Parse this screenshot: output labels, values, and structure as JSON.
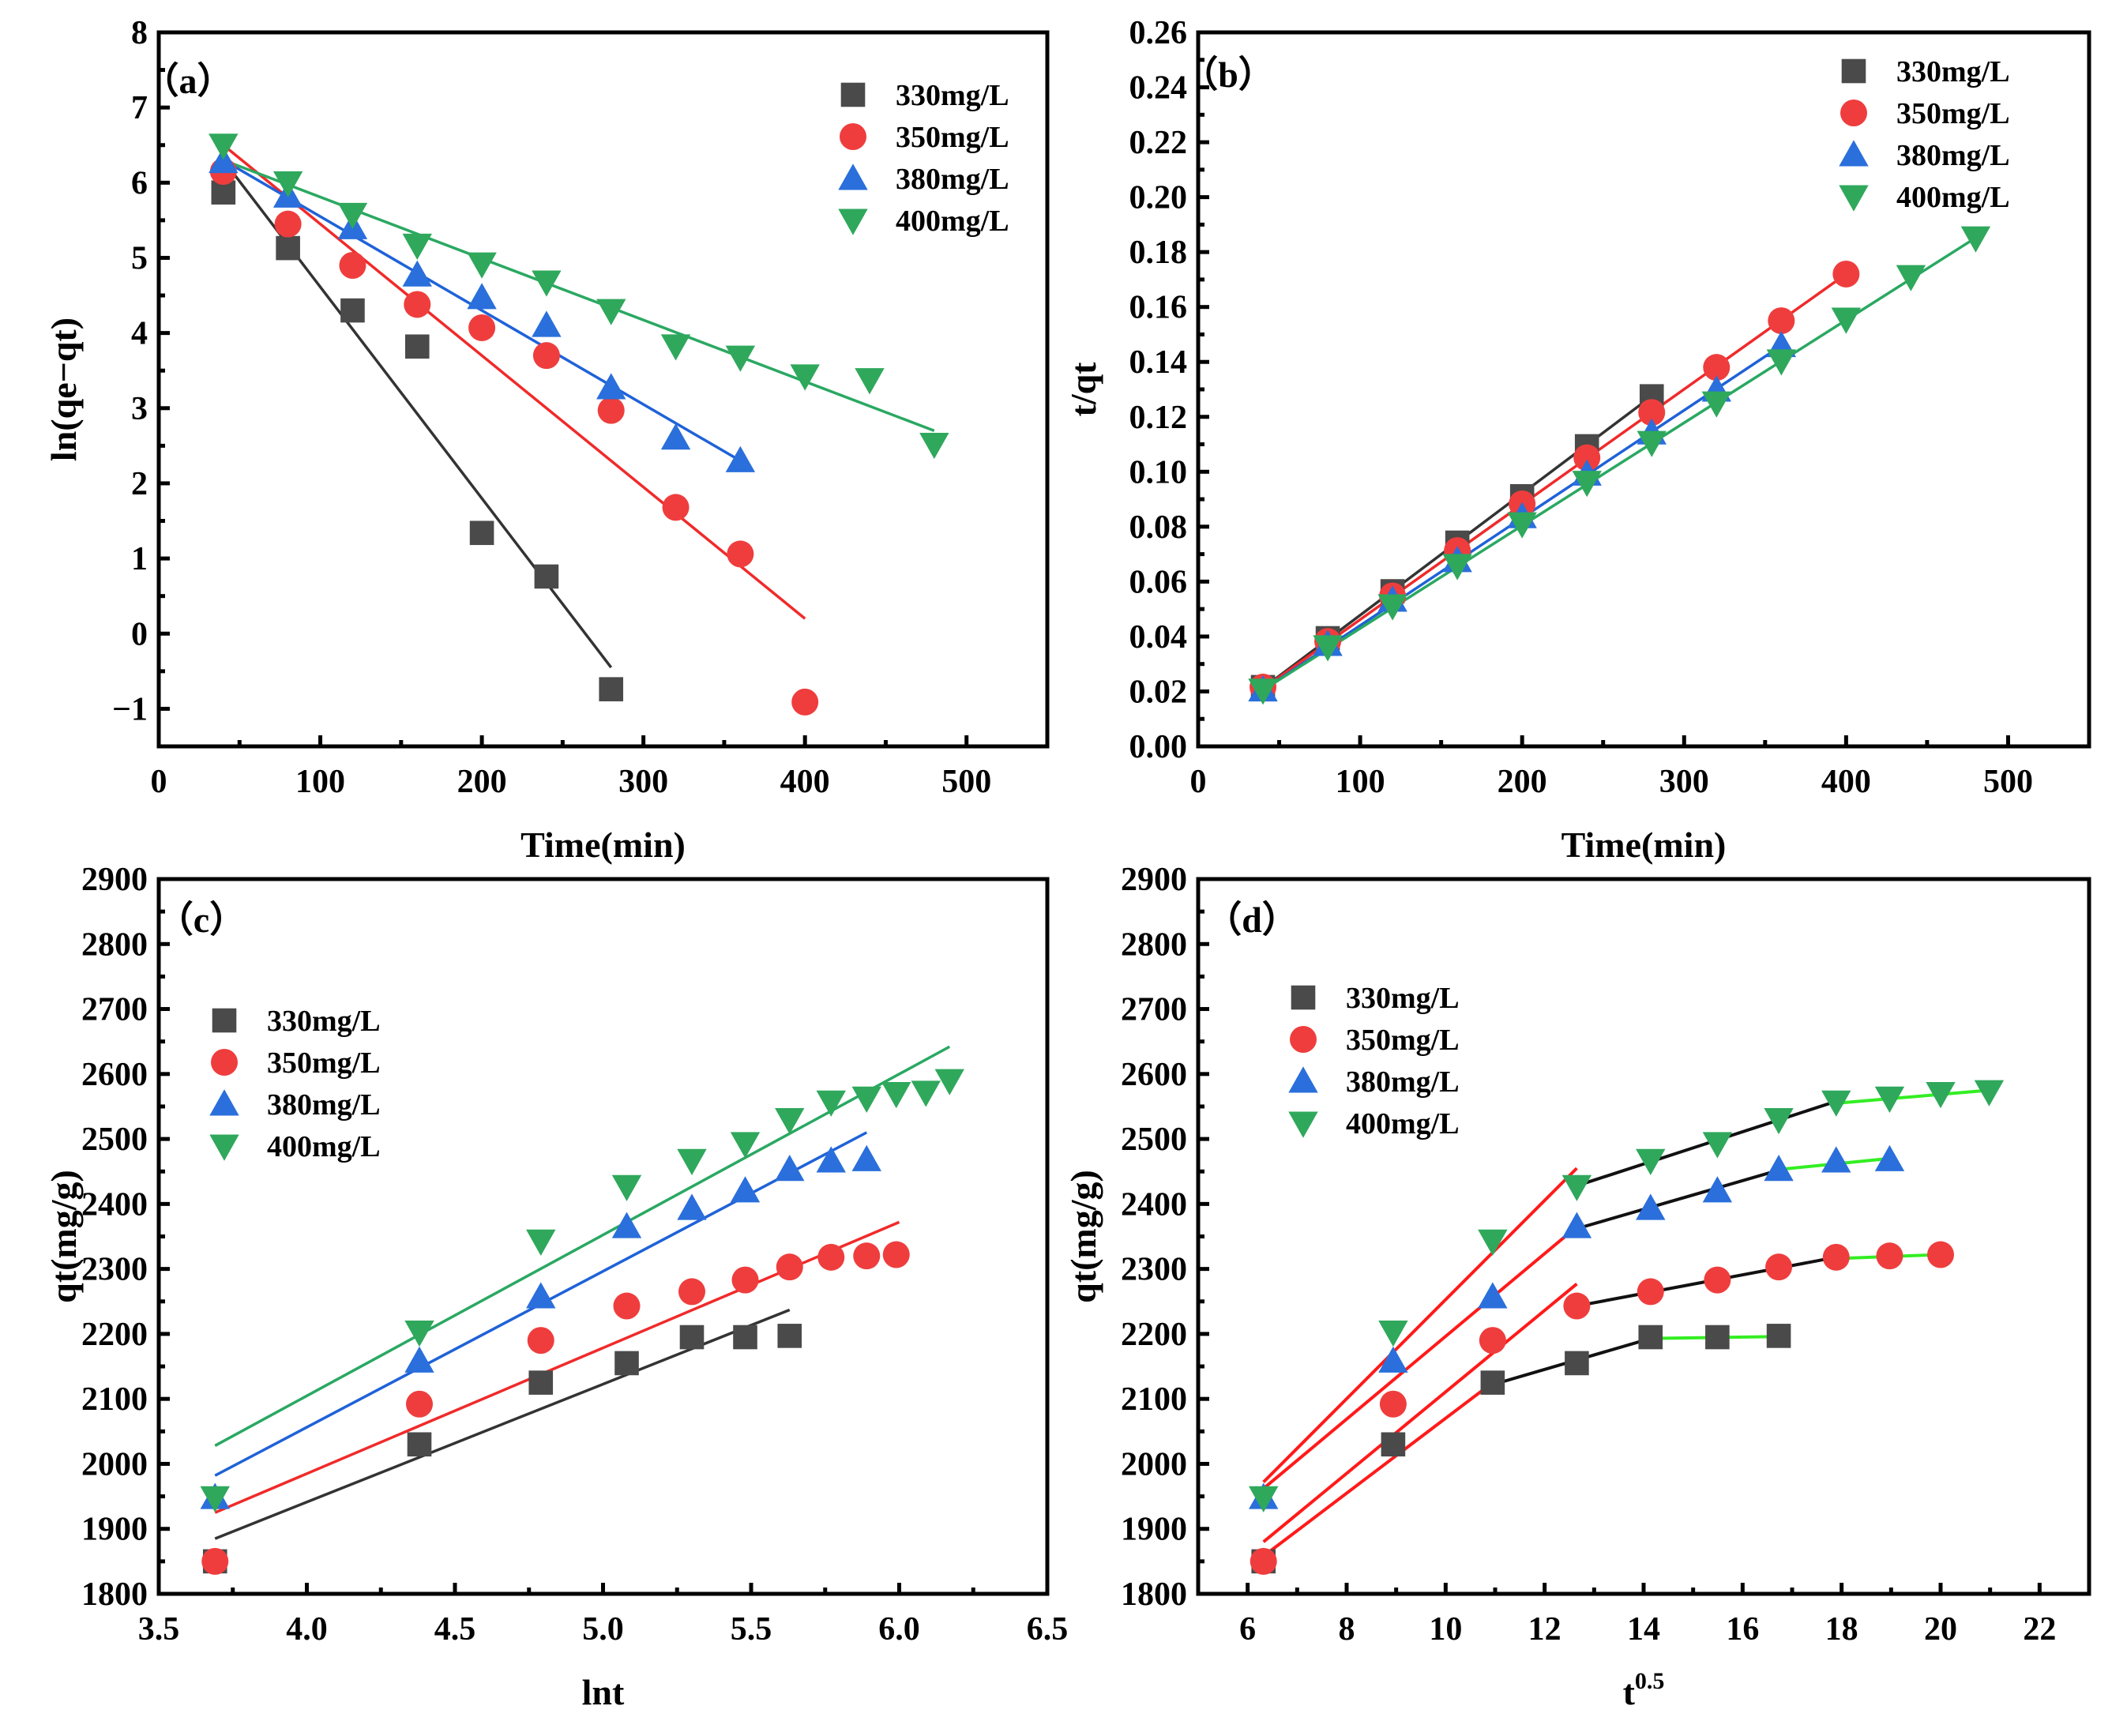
{
  "colors": {
    "330": "#4a4a4a",
    "350": "#ef3d3d",
    "380": "#2a6fdb",
    "400": "#2fa85c",
    "line_330": "#333333",
    "line_350": "#f02a2a",
    "line_380": "#1f62d8",
    "line_400": "#2aa862",
    "seg_red": "#ff1a1a",
    "seg_black": "#111111",
    "seg_green": "#33ee22"
  },
  "legend": [
    "330mg/L",
    "350mg/L",
    "380mg/L",
    "400mg/L"
  ],
  "chart_data": [
    {
      "id": "a",
      "type": "scatter",
      "panel_label": "（a）",
      "xlabel": "Time(min)",
      "ylabel": "ln(qe−qt)",
      "xlim": [
        0,
        550
      ],
      "ylim": [
        -1.5,
        8
      ],
      "xticks": [
        0,
        100,
        200,
        300,
        400,
        500
      ],
      "xtick_labels": [
        "0",
        "100",
        "200",
        "300",
        "400",
        "500"
      ],
      "yticks": [
        -1,
        0,
        1,
        2,
        3,
        4,
        5,
        6,
        7,
        8
      ],
      "ytick_labels": [
        "−1",
        "0",
        "1",
        "2",
        "3",
        "4",
        "5",
        "6",
        "7",
        "8"
      ],
      "legend_position": "top-right",
      "series": [
        {
          "name": "330mg/L",
          "key": "330",
          "marker": "square",
          "x": [
            40,
            80,
            120,
            160,
            200,
            240,
            280
          ],
          "y": [
            5.87,
            5.13,
            4.3,
            3.82,
            1.34,
            0.76,
            -0.74
          ],
          "fit": [
            [
              40,
              6.3
            ],
            [
              280,
              -0.45
            ]
          ]
        },
        {
          "name": "350mg/L",
          "key": "350",
          "marker": "circle",
          "x": [
            40,
            80,
            120,
            160,
            200,
            240,
            280,
            320,
            360,
            400
          ],
          "y": [
            6.15,
            5.45,
            4.9,
            4.38,
            4.07,
            3.7,
            2.97,
            1.68,
            1.06,
            -0.91
          ],
          "fit": [
            [
              40,
              6.5
            ],
            [
              400,
              0.2
            ]
          ]
        },
        {
          "name": "380mg/L",
          "key": "380",
          "marker": "triangle-up",
          "x": [
            40,
            80,
            120,
            160,
            200,
            240,
            280,
            320,
            360
          ],
          "y": [
            6.28,
            5.82,
            5.4,
            4.77,
            4.47,
            4.1,
            3.27,
            2.6,
            2.3
          ],
          "fit": [
            [
              40,
              6.3
            ],
            [
              360,
              2.3
            ]
          ]
        },
        {
          "name": "400mg/L",
          "key": "400",
          "marker": "triangle-down",
          "x": [
            40,
            80,
            120,
            160,
            200,
            240,
            280,
            320,
            360,
            400,
            440,
            480
          ],
          "y": [
            6.5,
            6.0,
            5.58,
            5.17,
            4.92,
            4.68,
            4.3,
            3.83,
            3.68,
            3.43,
            3.38,
            2.52
          ],
          "fit": [
            [
              40,
              6.3
            ],
            [
              480,
              2.7
            ]
          ]
        }
      ]
    },
    {
      "id": "b",
      "type": "scatter",
      "panel_label": "（b）",
      "xlabel": "Time(min)",
      "ylabel": "t/qt",
      "xlim": [
        0,
        550
      ],
      "ylim": [
        0,
        0.26
      ],
      "xticks": [
        0,
        100,
        200,
        300,
        400,
        500
      ],
      "xtick_labels": [
        "0",
        "100",
        "200",
        "300",
        "400",
        "500"
      ],
      "yticks": [
        0,
        0.02,
        0.04,
        0.06,
        0.08,
        0.1,
        0.12,
        0.14,
        0.16,
        0.18,
        0.2,
        0.22,
        0.24,
        0.26
      ],
      "ytick_labels": [
        "0.00",
        "0.02",
        "0.04",
        "0.06",
        "0.08",
        "0.10",
        "0.12",
        "0.14",
        "0.16",
        "0.18",
        "0.20",
        "0.22",
        "0.24",
        "0.26"
      ],
      "legend_position": "top-right",
      "series": [
        {
          "name": "330mg/L",
          "key": "330",
          "marker": "square",
          "x": [
            40,
            80,
            120,
            160,
            200,
            240,
            280
          ],
          "y": [
            0.0216,
            0.0394,
            0.0565,
            0.0742,
            0.0911,
            0.1093,
            0.1275
          ],
          "fit": [
            [
              40,
              0.0212
            ],
            [
              280,
              0.1275
            ]
          ]
        },
        {
          "name": "350mg/L",
          "key": "350",
          "marker": "circle",
          "x": [
            40,
            80,
            120,
            160,
            200,
            240,
            280,
            320,
            360,
            400
          ],
          "y": [
            0.0216,
            0.0382,
            0.0548,
            0.0713,
            0.0883,
            0.1051,
            0.1216,
            0.138,
            0.155,
            0.172
          ],
          "fit": [
            [
              40,
              0.021
            ],
            [
              400,
              0.172
            ]
          ]
        },
        {
          "name": "380mg/L",
          "key": "380",
          "marker": "triangle-up",
          "x": [
            40,
            80,
            120,
            160,
            200,
            240,
            280,
            320,
            360
          ],
          "y": [
            0.0205,
            0.0371,
            0.0532,
            0.0676,
            0.0836,
            0.0991,
            0.1141,
            0.1297,
            0.1459
          ],
          "fit": [
            [
              40,
              0.0205
            ],
            [
              360,
              0.1459
            ]
          ]
        },
        {
          "name": "400mg/L",
          "key": "400",
          "marker": "triangle-down",
          "x": [
            40,
            80,
            120,
            160,
            200,
            240,
            280,
            320,
            360,
            400,
            440,
            480
          ],
          "y": [
            0.0205,
            0.0363,
            0.0512,
            0.0659,
            0.0811,
            0.0962,
            0.1107,
            0.1251,
            0.1404,
            0.1556,
            0.1711,
            0.1852
          ],
          "fit": [
            [
              40,
              0.0205
            ],
            [
              480,
              0.1852
            ]
          ]
        }
      ]
    },
    {
      "id": "c",
      "type": "scatter",
      "panel_label": "（c）",
      "xlabel": "lnt",
      "ylabel": "qt(mg/g)",
      "xlim": [
        3.5,
        6.5
      ],
      "ylim": [
        1800,
        2900
      ],
      "xticks": [
        3.5,
        4.0,
        4.5,
        5.0,
        5.5,
        6.0,
        6.5
      ],
      "xtick_labels": [
        "3.5",
        "4.0",
        "4.5",
        "5.0",
        "5.5",
        "6.0",
        "6.5"
      ],
      "yticks": [
        1800,
        1900,
        2000,
        2100,
        2200,
        2300,
        2400,
        2500,
        2600,
        2700,
        2800,
        2900
      ],
      "ytick_labels": [
        "1800",
        "1900",
        "2000",
        "2100",
        "2200",
        "2300",
        "2400",
        "2500",
        "2600",
        "2700",
        "2800",
        "2900"
      ],
      "legend_position": "upper-left",
      "series": [
        {
          "name": "330mg/L",
          "key": "330",
          "marker": "square",
          "x": [
            3.69,
            4.38,
            4.79,
            5.08,
            5.3,
            5.48,
            5.63
          ],
          "y": [
            1850,
            2030,
            2125,
            2155,
            2195,
            2195,
            2197
          ],
          "fit": [
            [
              3.69,
              1885
            ],
            [
              5.63,
              2237
            ]
          ]
        },
        {
          "name": "350mg/L",
          "key": "350",
          "marker": "circle",
          "x": [
            3.69,
            4.38,
            4.79,
            5.08,
            5.3,
            5.48,
            5.63,
            5.77,
            5.89,
            5.99
          ],
          "y": [
            1850,
            2092,
            2190,
            2243,
            2265,
            2283,
            2303,
            2318,
            2320,
            2322
          ],
          "fit": [
            [
              3.69,
              1925
            ],
            [
              6.0,
              2372
            ]
          ]
        },
        {
          "name": "380mg/L",
          "key": "380",
          "marker": "triangle-up",
          "x": [
            3.69,
            4.38,
            4.79,
            5.08,
            5.3,
            5.48,
            5.63,
            5.77,
            5.89
          ],
          "y": [
            1948,
            2158,
            2257,
            2365,
            2393,
            2420,
            2453,
            2466,
            2468
          ],
          "fit": [
            [
              3.69,
              1982
            ],
            [
              5.89,
              2510
            ]
          ]
        },
        {
          "name": "400mg/L",
          "key": "400",
          "marker": "triangle-down",
          "x": [
            3.69,
            4.38,
            4.79,
            5.08,
            5.3,
            5.48,
            5.63,
            5.77,
            5.89,
            5.99,
            6.09,
            6.17
          ],
          "y": [
            1948,
            2203,
            2343,
            2427,
            2467,
            2493,
            2530,
            2557,
            2563,
            2570,
            2572,
            2590
          ],
          "fit": [
            [
              3.69,
              2028
            ],
            [
              6.17,
              2642
            ]
          ]
        }
      ]
    },
    {
      "id": "d",
      "type": "scatter",
      "panel_label": "（d）",
      "xlabel": "t",
      "xlabel_sup": "0.5",
      "ylabel": "qt(mg/g)",
      "xlim": [
        5,
        23
      ],
      "ylim": [
        1800,
        2900
      ],
      "xticks": [
        6,
        8,
        10,
        12,
        14,
        16,
        18,
        20,
        22
      ],
      "xtick_labels": [
        "6",
        "8",
        "10",
        "12",
        "14",
        "16",
        "18",
        "20",
        "22"
      ],
      "yticks": [
        1800,
        1900,
        2000,
        2100,
        2200,
        2300,
        2400,
        2500,
        2600,
        2700,
        2800,
        2900
      ],
      "ytick_labels": [
        "1800",
        "1900",
        "2000",
        "2100",
        "2200",
        "2300",
        "2400",
        "2500",
        "2600",
        "2700",
        "2800",
        "2900"
      ],
      "legend_position": "upper-left",
      "series": [
        {
          "name": "330mg/L",
          "key": "330",
          "marker": "square",
          "x": [
            6.32,
            8.94,
            10.95,
            12.65,
            14.14,
            15.49,
            16.73
          ],
          "y": [
            1850,
            2030,
            2125,
            2155,
            2195,
            2195,
            2197
          ],
          "segments": [
            {
              "color": "seg_red",
              "pts": [
                [
                  6.32,
                  1858
                ],
                [
                  10.95,
                  2125
                ]
              ]
            },
            {
              "color": "seg_black",
              "pts": [
                [
                  10.95,
                  2122
                ],
                [
                  14.14,
                  2193
                ]
              ]
            },
            {
              "color": "seg_green",
              "pts": [
                [
                  14.14,
                  2193
                ],
                [
                  16.73,
                  2196
                ]
              ]
            }
          ]
        },
        {
          "name": "350mg/L",
          "key": "350",
          "marker": "circle",
          "x": [
            6.32,
            8.94,
            10.95,
            12.65,
            14.14,
            15.49,
            16.73,
            17.89,
            18.97,
            20.0
          ],
          "y": [
            1850,
            2092,
            2190,
            2243,
            2265,
            2283,
            2303,
            2318,
            2320,
            2322
          ],
          "segments": [
            {
              "color": "seg_red",
              "pts": [
                [
                  6.32,
                  1880
                ],
                [
                  12.65,
                  2277
                ]
              ]
            },
            {
              "color": "seg_black",
              "pts": [
                [
                  12.65,
                  2243
                ],
                [
                  17.89,
                  2318
                ]
              ]
            },
            {
              "color": "seg_green",
              "pts": [
                [
                  17.89,
                  2316
                ],
                [
                  20.0,
                  2322
                ]
              ]
            }
          ]
        },
        {
          "name": "380mg/L",
          "key": "380",
          "marker": "triangle-up",
          "x": [
            6.32,
            8.94,
            10.95,
            12.65,
            14.14,
            15.49,
            16.73,
            17.89,
            18.97
          ],
          "y": [
            1948,
            2158,
            2257,
            2365,
            2393,
            2420,
            2453,
            2466,
            2468
          ],
          "segments": [
            {
              "color": "seg_red",
              "pts": [
                [
                  6.32,
                  1962
                ],
                [
                  12.65,
                  2365
                ]
              ]
            },
            {
              "color": "seg_black",
              "pts": [
                [
                  12.65,
                  2362
                ],
                [
                  16.73,
                  2452
                ]
              ]
            },
            {
              "color": "seg_green",
              "pts": [
                [
                  16.73,
                  2453
                ],
                [
                  18.97,
                  2470
                ]
              ]
            }
          ]
        },
        {
          "name": "400mg/L",
          "key": "400",
          "marker": "triangle-down",
          "x": [
            6.32,
            8.94,
            10.95,
            12.65,
            14.14,
            15.49,
            16.73,
            17.89,
            18.97,
            20.0,
            20.98
          ],
          "y": [
            1948,
            2203,
            2343,
            2427,
            2467,
            2493,
            2530,
            2557,
            2563,
            2570,
            2573
          ],
          "segments": [
            {
              "color": "seg_red",
              "pts": [
                [
                  6.32,
                  1972
                ],
                [
                  12.65,
                  2455
                ]
              ]
            },
            {
              "color": "seg_black",
              "pts": [
                [
                  12.65,
                  2428
                ],
                [
                  17.89,
                  2558
                ]
              ]
            },
            {
              "color": "seg_green",
              "pts": [
                [
                  17.89,
                  2555
                ],
                [
                  20.98,
                  2575
                ]
              ]
            }
          ]
        }
      ]
    }
  ]
}
